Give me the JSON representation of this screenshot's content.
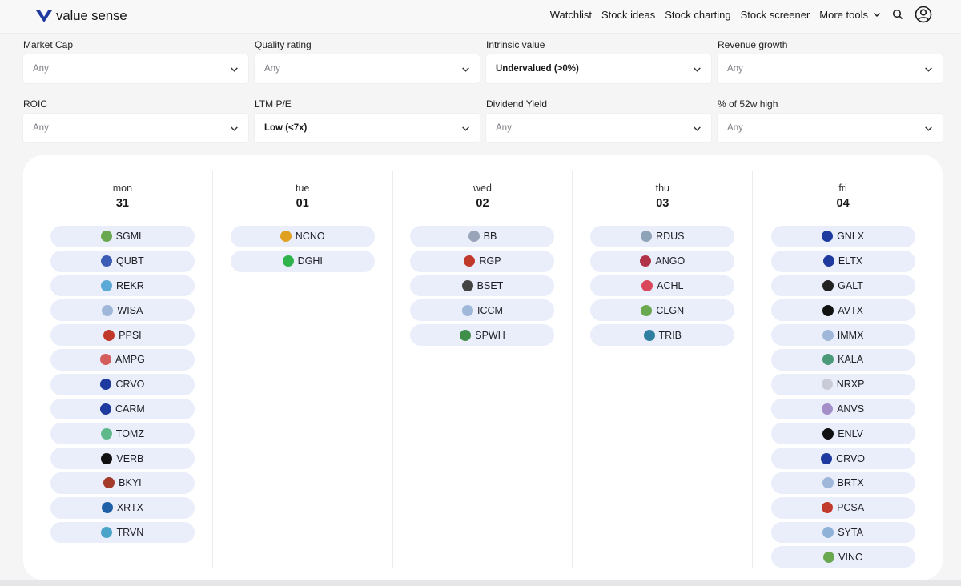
{
  "brand": {
    "name": "value sense",
    "accent": "#1f3a9e"
  },
  "nav": {
    "items": [
      "Watchlist",
      "Stock ideas",
      "Stock charting",
      "Stock screener"
    ],
    "more_tools": "More tools",
    "search_icon": "search-icon",
    "user_icon": "user-icon"
  },
  "filters": [
    {
      "label": "Market Cap",
      "value": "Any",
      "active": false
    },
    {
      "label": "Quality rating",
      "value": "Any",
      "active": false
    },
    {
      "label": "Intrinsic value",
      "value": "Undervalued (>0%)",
      "active": true
    },
    {
      "label": "Revenue growth",
      "value": "Any",
      "active": false
    },
    {
      "label": "ROIC",
      "value": "Any",
      "active": false
    },
    {
      "label": "LTM P/E",
      "value": "Low (<7x)",
      "active": true
    },
    {
      "label": "Dividend Yield",
      "value": "Any",
      "active": false
    },
    {
      "label": "% of 52w high",
      "value": "Any",
      "active": false
    }
  ],
  "calendar": {
    "days": [
      {
        "name": "mon",
        "num": "31",
        "tickers": [
          {
            "symbol": "SGML",
            "color": "#6aa84f"
          },
          {
            "symbol": "QUBT",
            "color": "#3b5bb5"
          },
          {
            "symbol": "REKR",
            "color": "#5aa9d6"
          },
          {
            "symbol": "WISA",
            "color": "#9fb7d8"
          },
          {
            "symbol": "PPSI",
            "color": "#c0392b"
          },
          {
            "symbol": "AMPG",
            "color": "#d35c5c"
          },
          {
            "symbol": "CRVO",
            "color": "#1f3a9e"
          },
          {
            "symbol": "CARM",
            "color": "#1f3a9e"
          },
          {
            "symbol": "TOMZ",
            "color": "#5fb88a"
          },
          {
            "symbol": "VERB",
            "color": "#111111"
          },
          {
            "symbol": "BKYI",
            "color": "#a33a2a"
          },
          {
            "symbol": "XRTX",
            "color": "#1f5fa8"
          },
          {
            "symbol": "TRVN",
            "color": "#4aa3c9"
          }
        ]
      },
      {
        "name": "tue",
        "num": "01",
        "tickers": [
          {
            "symbol": "NCNO",
            "color": "#e0a020"
          },
          {
            "symbol": "DGHI",
            "color": "#2fb34a"
          }
        ]
      },
      {
        "name": "wed",
        "num": "02",
        "tickers": [
          {
            "symbol": "BB",
            "color": "#9aa4b8"
          },
          {
            "symbol": "RGP",
            "color": "#c0392b"
          },
          {
            "symbol": "BSET",
            "color": "#444444"
          },
          {
            "symbol": "ICCM",
            "color": "#9fb7d8"
          },
          {
            "symbol": "SPWH",
            "color": "#3f8f4a"
          }
        ]
      },
      {
        "name": "thu",
        "num": "03",
        "tickers": [
          {
            "symbol": "RDUS",
            "color": "#8fa3b8"
          },
          {
            "symbol": "ANGO",
            "color": "#b0334a"
          },
          {
            "symbol": "ACHL",
            "color": "#d9475a"
          },
          {
            "symbol": "CLGN",
            "color": "#6aa84f"
          },
          {
            "symbol": "TRIB",
            "color": "#2f7fa0"
          }
        ]
      },
      {
        "name": "fri",
        "num": "04",
        "tickers": [
          {
            "symbol": "GNLX",
            "color": "#1f3a9e"
          },
          {
            "symbol": "ELTX",
            "color": "#1f3a9e"
          },
          {
            "symbol": "GALT",
            "color": "#222222"
          },
          {
            "symbol": "AVTX",
            "color": "#111111"
          },
          {
            "symbol": "IMMX",
            "color": "#9fb7d8"
          },
          {
            "symbol": "KALA",
            "color": "#4a9a7a"
          },
          {
            "symbol": "NRXP",
            "color": "#c9ccd6"
          },
          {
            "symbol": "ANVS",
            "color": "#a58fc9"
          },
          {
            "symbol": "ENLV",
            "color": "#111111"
          },
          {
            "symbol": "CRVO",
            "color": "#1f3a9e"
          },
          {
            "symbol": "BRTX",
            "color": "#9fb7d8"
          },
          {
            "symbol": "PCSA",
            "color": "#c0392b"
          },
          {
            "symbol": "SYTA",
            "color": "#8fb3d8"
          },
          {
            "symbol": "VINC",
            "color": "#6aa84f"
          }
        ]
      }
    ]
  }
}
